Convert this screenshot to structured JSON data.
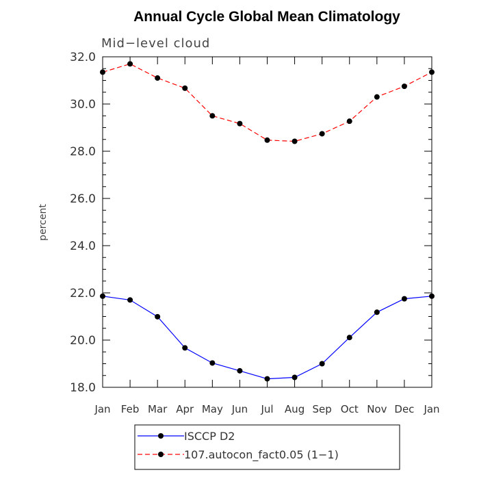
{
  "chart_data": {
    "type": "line",
    "title": "Annual Cycle Global Mean Climatology",
    "subtitle": "Mid−level cloud",
    "xlabel": "",
    "ylabel": "percent",
    "categories": [
      "Jan",
      "Feb",
      "Mar",
      "Apr",
      "May",
      "Jun",
      "Jul",
      "Aug",
      "Sep",
      "Oct",
      "Nov",
      "Dec",
      "Jan"
    ],
    "ylim": [
      18.0,
      32.0
    ],
    "yticks": [
      "18.0",
      "20.0",
      "22.0",
      "24.0",
      "26.0",
      "28.0",
      "30.0",
      "32.0"
    ],
    "grid": false,
    "legend_position": "bottom-center",
    "series": [
      {
        "name": "ISCCP D2",
        "color": "#0000ff",
        "dash": "solid",
        "marker": "filled-circle",
        "values": [
          21.86,
          21.7,
          20.99,
          19.67,
          19.03,
          18.7,
          18.36,
          18.42,
          19.0,
          20.11,
          21.18,
          21.75,
          21.86
        ]
      },
      {
        "name": "107.autocon_fact0.05 (1−1)",
        "color": "#ff0000",
        "dash": "dashed",
        "marker": "filled-circle",
        "values": [
          31.35,
          31.7,
          31.1,
          30.67,
          29.5,
          29.17,
          28.47,
          28.42,
          28.74,
          29.27,
          30.3,
          30.75,
          31.35
        ]
      }
    ]
  }
}
